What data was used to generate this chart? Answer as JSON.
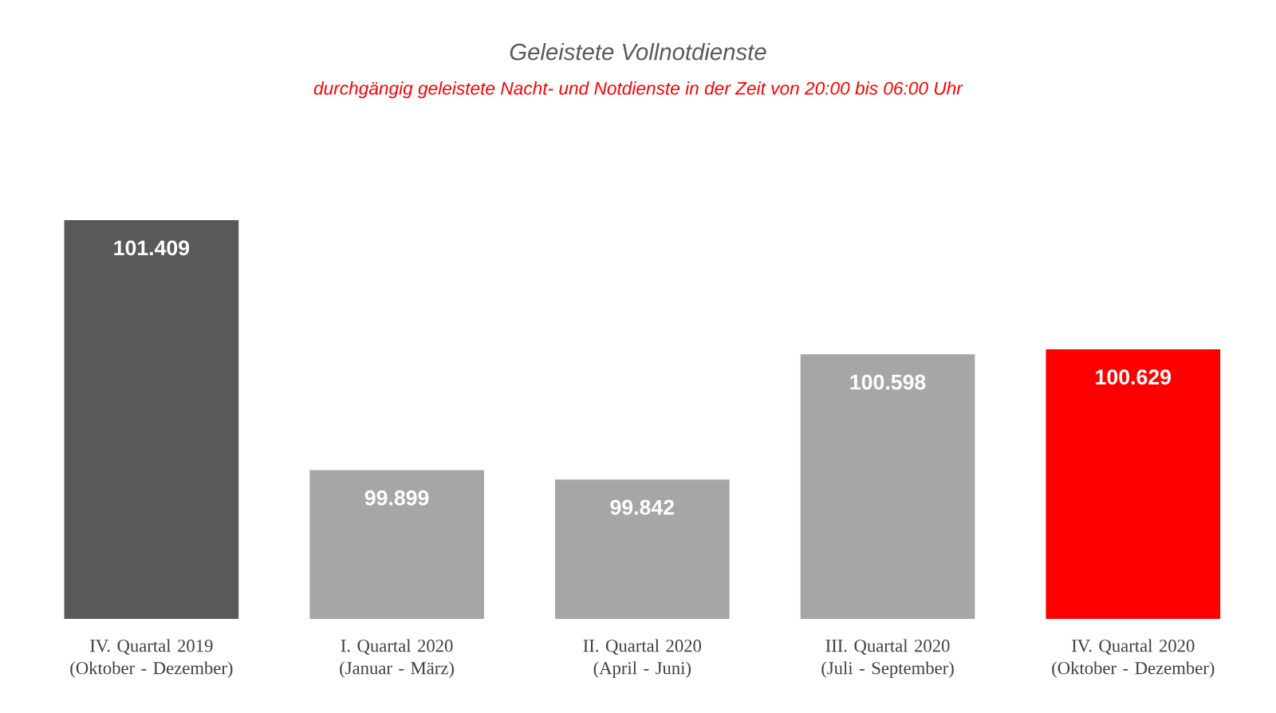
{
  "chart_data": {
    "type": "bar",
    "title": "Geleistete Vollnotdienste",
    "subtitle": "durchgängig geleistete Nacht- und Notdienste in der Zeit von 20:00 bis 06:00 Uhr",
    "categories": [
      "IV. Quartal 2019 (Oktober - Dezember)",
      "I. Quartal 2020 (Januar - März)",
      "II. Quartal 2020 (April - Juni)",
      "III. Quartal 2020 (Juli - September)",
      "IV. Quartal 2020 (Oktober - Dezember)"
    ],
    "values": [
      101409,
      99899,
      99842,
      100598,
      100629
    ],
    "value_labels": [
      "101.409",
      "99.899",
      "99.842",
      "100.598",
      "100.629"
    ],
    "colors": [
      "#595959",
      "#a6a6a6",
      "#a6a6a6",
      "#a6a6a6",
      "#ff0000"
    ],
    "ylim": [
      99000,
      101409
    ]
  }
}
